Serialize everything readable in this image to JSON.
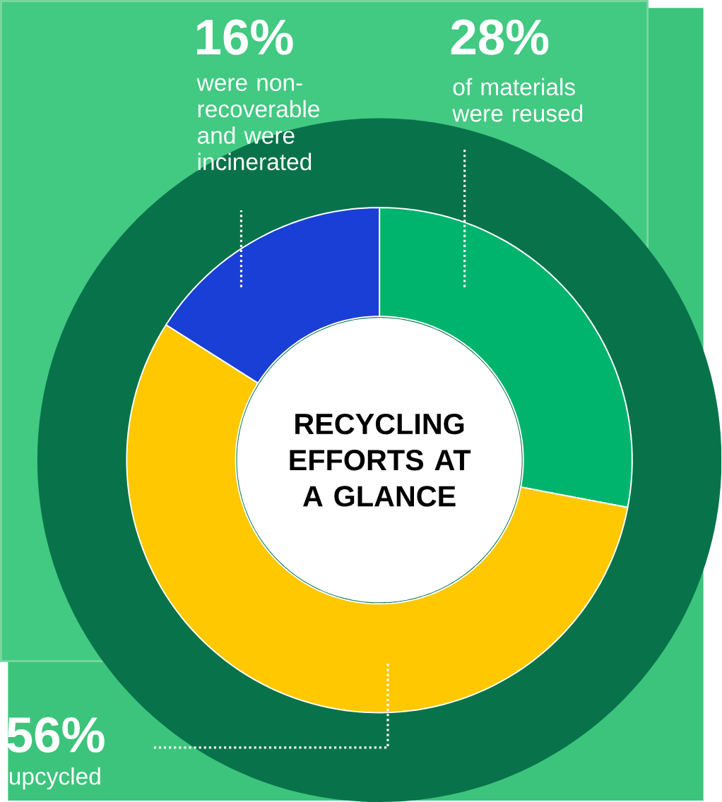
{
  "chart_data": {
    "type": "donut",
    "title": "RECYCLING EFFORTS AT A GLANCE",
    "categories": [
      "of materials were reused",
      "upcycled",
      "were non-recoverable and were incinerated"
    ],
    "values": [
      28,
      56,
      16
    ],
    "colors": [
      "#00b46e",
      "#ffc800",
      "#1a3fd6"
    ],
    "value_labels": [
      "28%",
      "56%",
      "16%"
    ]
  }
}
